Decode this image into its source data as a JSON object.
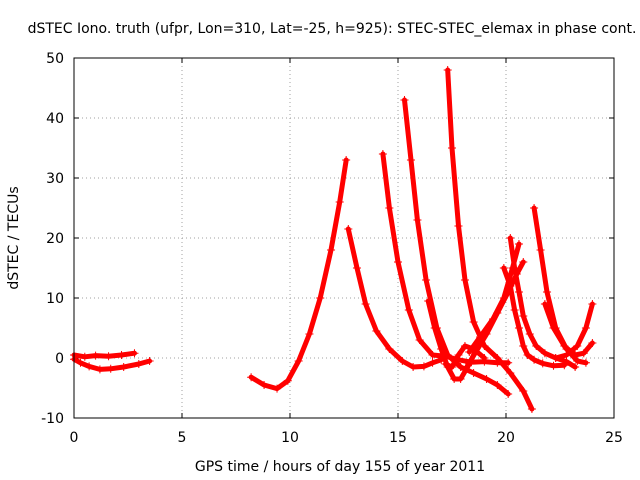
{
  "chart_data": {
    "type": "scatter",
    "title": "dSTEC Iono. truth (ufpr, Lon=310, Lat=-25, h=925): STEC-STEC_elemax in phase cont.",
    "xlabel": "GPS time / hours of day 155 of year 2011",
    "ylabel": "dSTEC  / TECUs",
    "xlim": [
      0,
      25
    ],
    "ylim": [
      -10,
      50
    ],
    "xticks": [
      0,
      5,
      10,
      15,
      20,
      25
    ],
    "yticks": [
      -10,
      0,
      10,
      20,
      30,
      40,
      50
    ],
    "grid": true,
    "marker": "+",
    "color": "#ff0000",
    "series": [
      {
        "x": [
          0.0,
          0.5,
          1.0,
          1.6,
          2.2,
          2.8
        ],
        "y": [
          0.5,
          0.2,
          0.4,
          0.3,
          0.5,
          0.8
        ]
      },
      {
        "x": [
          0.0,
          0.3,
          0.7,
          1.2,
          1.7,
          2.3,
          3.0,
          3.5
        ],
        "y": [
          -0.2,
          -0.8,
          -1.4,
          -1.9,
          -1.8,
          -1.5,
          -1.0,
          -0.5
        ]
      },
      {
        "x": [
          8.2,
          8.8,
          9.4,
          9.9,
          10.4,
          10.9,
          11.4,
          11.9,
          12.3,
          12.6
        ],
        "y": [
          -3.2,
          -4.5,
          -5.1,
          -3.8,
          -0.5,
          4.0,
          10.0,
          18.0,
          26.0,
          33.0
        ]
      },
      {
        "x": [
          12.7,
          13.1,
          13.5,
          14.0,
          14.6,
          15.2,
          15.7,
          16.2,
          16.6,
          17.0
        ],
        "y": [
          21.5,
          15.0,
          9.0,
          4.5,
          1.5,
          -0.5,
          -1.5,
          -1.4,
          -0.8,
          -0.3
        ]
      },
      {
        "x": [
          14.3,
          14.6,
          15.0,
          15.5,
          16.0,
          16.6,
          17.2,
          17.8,
          18.4,
          19.0,
          19.6,
          20.1
        ],
        "y": [
          34.0,
          25.0,
          16.0,
          8.0,
          3.0,
          0.5,
          0.3,
          -0.3,
          -0.7,
          -0.6,
          -0.8,
          -0.8
        ]
      },
      {
        "x": [
          15.3,
          15.6,
          15.9,
          16.3,
          16.8,
          17.3,
          17.9,
          18.5,
          19.1,
          19.6,
          20.1
        ],
        "y": [
          43.0,
          33.0,
          23.0,
          13.0,
          5.0,
          0.5,
          -1.5,
          -2.5,
          -3.5,
          -4.5,
          -6.0
        ]
      },
      {
        "x": [
          17.3,
          17.5,
          17.8,
          18.1,
          18.5,
          19.0,
          19.6,
          20.2,
          20.8,
          21.2
        ],
        "y": [
          48.0,
          35.0,
          22.0,
          13.0,
          6.0,
          2.0,
          0.0,
          -2.5,
          -5.5,
          -8.5
        ]
      },
      {
        "x": [
          16.4,
          16.7,
          17.0,
          17.3,
          17.6,
          17.9,
          18.3,
          18.7
        ],
        "y": [
          9.5,
          5.0,
          1.5,
          -1.5,
          -3.5,
          -3.5,
          -1.0,
          2.0
        ]
      },
      {
        "x": [
          18.1,
          18.6,
          19.1,
          19.6,
          20.1,
          20.5,
          20.8
        ],
        "y": [
          -2.0,
          1.0,
          4.0,
          7.5,
          11.0,
          14.0,
          16.0
        ]
      },
      {
        "x": [
          19.9,
          20.2,
          20.4,
          20.6,
          20.8,
          21.0,
          21.3,
          21.7,
          22.2,
          22.7
        ],
        "y": [
          15.0,
          12.0,
          8.0,
          5.0,
          2.0,
          0.5,
          -0.3,
          -0.9,
          -1.3,
          -1.2
        ]
      },
      {
        "x": [
          20.2,
          20.4,
          20.6,
          20.8,
          21.1,
          21.4,
          21.8,
          22.3,
          22.8,
          23.2
        ],
        "y": [
          20.0,
          15.0,
          11.0,
          7.0,
          4.0,
          2.0,
          0.8,
          0.0,
          -0.6,
          -1.5
        ]
      },
      {
        "x": [
          18.3,
          18.8,
          19.4,
          19.9,
          20.3,
          20.6
        ],
        "y": [
          1.0,
          3.5,
          6.5,
          10.0,
          15.0,
          19.0
        ]
      },
      {
        "x": [
          21.3,
          21.6,
          21.9,
          22.3,
          22.8,
          23.3,
          23.7
        ],
        "y": [
          25.0,
          18.0,
          11.0,
          5.0,
          1.5,
          -0.5,
          -0.8
        ]
      },
      {
        "x": [
          21.8,
          22.2,
          22.7,
          23.2,
          23.6,
          24.0
        ],
        "y": [
          9.0,
          5.0,
          2.0,
          0.5,
          0.8,
          2.5
        ]
      },
      {
        "x": [
          22.3,
          22.8,
          23.3,
          23.7,
          24.0
        ],
        "y": [
          0.0,
          0.5,
          2.0,
          5.0,
          9.0
        ]
      },
      {
        "x": [
          17.2,
          17.5,
          17.8,
          18.1,
          18.5,
          19.0
        ],
        "y": [
          -1.0,
          -1.5,
          0.5,
          2.0,
          1.5,
          0.0
        ]
      }
    ]
  }
}
